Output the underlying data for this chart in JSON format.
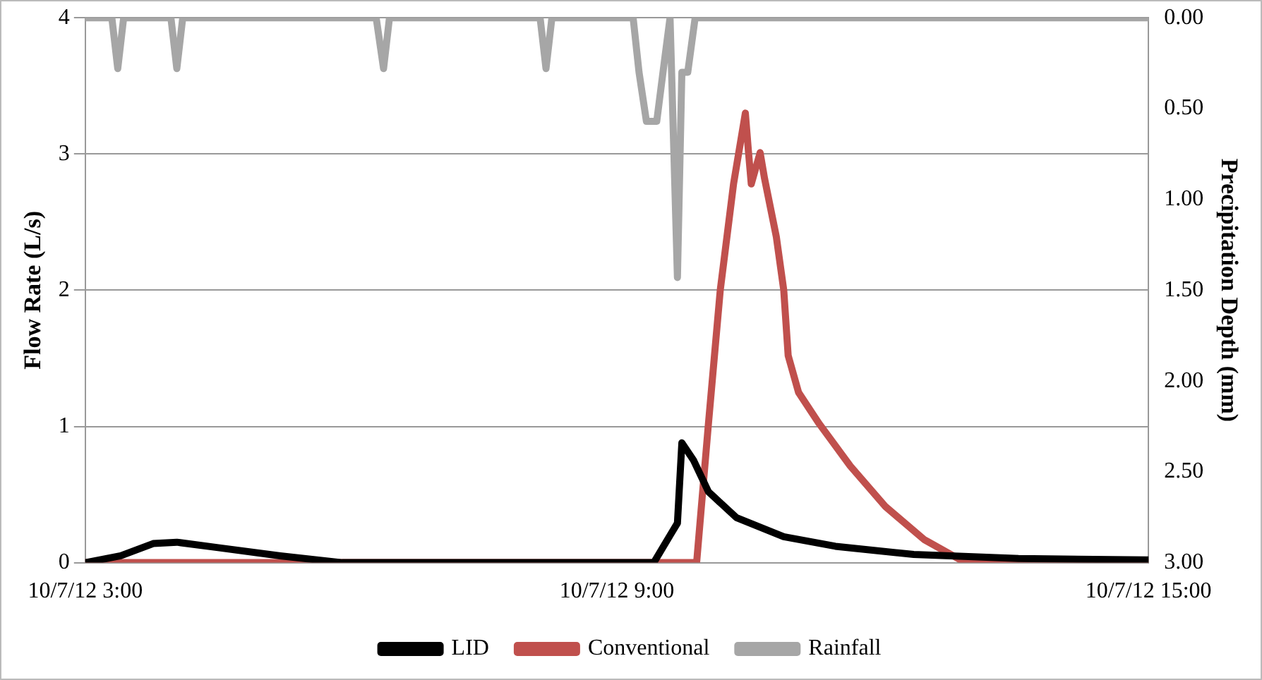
{
  "chart_data": {
    "type": "line",
    "ylabel": "Flow Rate (L/s)",
    "y2label": "Precipitation Depth (mm)",
    "xlim": [
      "--10-07T03:00",
      "--10-07T15:00"
    ],
    "xticks": [
      {
        "value": "--10-07T03:00",
        "label": "10/7/12 3:00"
      },
      {
        "value": "--10-07T09:00",
        "label": "10/7/12 9:00"
      },
      {
        "value": "--10-07T15:00",
        "label": "10/7/12 15:00"
      }
    ],
    "ylim": [
      0,
      4
    ],
    "yticks": [
      0,
      1,
      2,
      3,
      4
    ],
    "y2lim": [
      3,
      0
    ],
    "y2ticks": [
      {
        "value": 3,
        "label": "3.00"
      },
      {
        "value": 2.5,
        "label": "2.50"
      },
      {
        "value": 2,
        "label": "2.00"
      },
      {
        "value": 1.5,
        "label": "1.50"
      },
      {
        "value": 1,
        "label": "1.00"
      },
      {
        "value": 0.5,
        "label": "0.50"
      },
      {
        "value": 0,
        "label": "0.00"
      }
    ],
    "grid": "y",
    "legend": "bottom",
    "marker": "none",
    "line_style": "solid",
    "series": [
      {
        "name": "LID",
        "color": "#000000",
        "x": [
          "--10-07T03:00",
          "--10-07T03:24",
          "--10-07T03:46",
          "--10-07T04:02",
          "--10-07T04:30",
          "--10-07T05:12",
          "--10-07T05:54",
          "--10-07T09:25",
          "--10-07T09:36",
          "--10-07T09:41",
          "--10-07T09:44",
          "--10-07T09:52",
          "--10-07T10:02",
          "--10-07T10:21",
          "--10-07T10:53",
          "--10-07T11:28",
          "--10-07T12:21",
          "--10-07T13:32",
          "--10-07T15:00"
        ],
        "values": [
          0,
          0.05,
          0.14,
          0.15,
          0.11,
          0.05,
          0,
          0,
          0.2,
          0.29,
          0.88,
          0.75,
          0.52,
          0.33,
          0.19,
          0.12,
          0.06,
          0.03,
          0.02
        ]
      },
      {
        "name": "Conventional",
        "color": "#c0504d",
        "x": [
          "--10-07T03:00",
          "--10-07T09:54",
          "--10-07T10:02",
          "--10-07T10:10",
          "--10-07T10:19",
          "--10-07T10:27",
          "--10-07T10:29",
          "--10-07T10:31",
          "--10-07T10:37",
          "--10-07T10:40",
          "--10-07T10:48",
          "--10-07T10:53",
          "--10-07T10:56",
          "--10-07T11:03",
          "--10-07T11:17",
          "--10-07T11:38",
          "--10-07T12:02",
          "--10-07T12:28",
          "--10-07T12:56",
          "--10-07T15:00"
        ],
        "values": [
          0,
          0,
          1.02,
          2.0,
          2.78,
          3.3,
          3.03,
          2.78,
          3.01,
          2.82,
          2.39,
          2.0,
          1.52,
          1.25,
          1.02,
          0.71,
          0.41,
          0.17,
          0,
          0
        ]
      },
      {
        "name": "Rainfall",
        "color": "#a6a6a6",
        "axis": "y2",
        "x": [
          "--10-07T03:00",
          "--10-07T03:18",
          "--10-07T03:22",
          "--10-07T03:26",
          "--10-07T03:58",
          "--10-07T04:02",
          "--10-07T04:06",
          "--10-07T06:17",
          "--10-07T06:22",
          "--10-07T06:26",
          "--10-07T08:08",
          "--10-07T08:12",
          "--10-07T08:16",
          "--10-07T09:11",
          "--10-07T09:15",
          "--10-07T09:20",
          "--10-07T09:27",
          "--10-07T09:32",
          "--10-07T09:36",
          "--10-07T09:41",
          "--10-07T09:44",
          "--10-07T09:48",
          "--10-07T09:53",
          "--10-07T15:00"
        ],
        "values": [
          0,
          0,
          0.28,
          0,
          0,
          0.28,
          0,
          0,
          0.28,
          0,
          0,
          0.28,
          0,
          0,
          0.3,
          0.57,
          0.57,
          0.25,
          0,
          1.43,
          0.3,
          0.3,
          0,
          0
        ]
      }
    ]
  }
}
